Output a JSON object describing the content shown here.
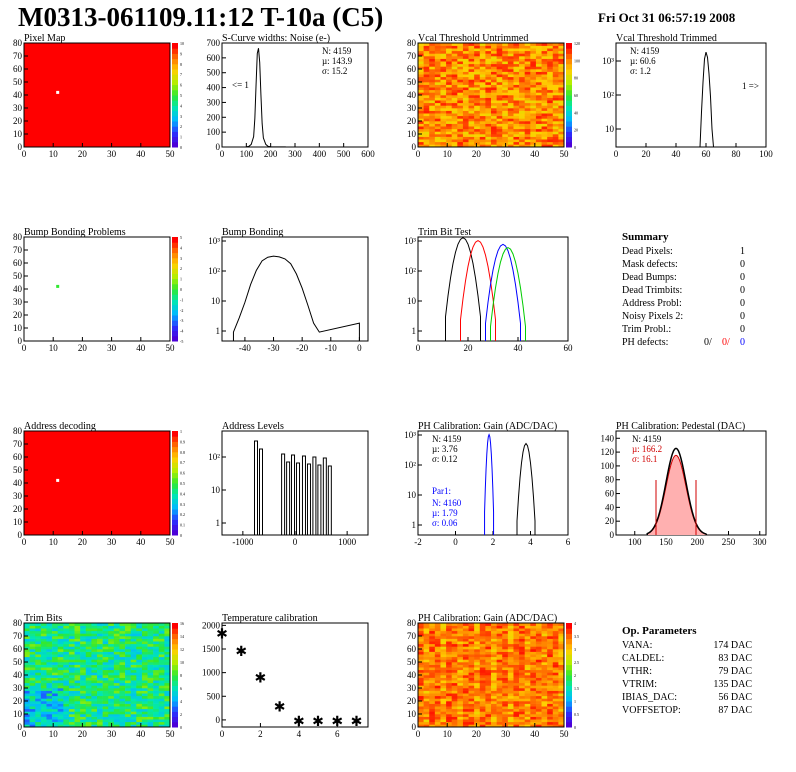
{
  "header": {
    "title": "M0313-061109.11:12 T-10a (C5)",
    "date": "Fri Oct 31 06:57:19 2008"
  },
  "chart_data": [
    {
      "id": "pixel-map",
      "type": "heatmap",
      "title": "Pixel Map",
      "x_ticks": [
        "0",
        "10",
        "20",
        "30",
        "40",
        "50"
      ],
      "y_ticks": [
        "0",
        "10",
        "20",
        "30",
        "40",
        "50",
        "60",
        "70",
        "80"
      ],
      "fill": "#ff0000",
      "marker": {
        "x": 12,
        "y": 42
      },
      "scale_ticks": [
        "0",
        "1",
        "2",
        "3",
        "4",
        "5",
        "6",
        "7",
        "8",
        "9",
        "10"
      ]
    },
    {
      "id": "s-curve-noise",
      "type": "histogram",
      "title": "S-Curve widths: Noise (e-)",
      "x_ticks": [
        "0",
        "100",
        "200",
        "300",
        "400",
        "500",
        "600"
      ],
      "y_ticks": [
        "0",
        "100",
        "200",
        "300",
        "400",
        "500",
        "600",
        "700"
      ],
      "stats": [
        "N: 4159",
        "µ: 143.9",
        "σ: 15.2"
      ],
      "annotation": "<= 1",
      "x": [
        100,
        110,
        120,
        130,
        135,
        140,
        145,
        150,
        155,
        160,
        165,
        170,
        180,
        190,
        200,
        260
      ],
      "y": [
        2,
        5,
        20,
        80,
        220,
        480,
        720,
        760,
        650,
        400,
        180,
        70,
        20,
        5,
        2,
        1
      ]
    },
    {
      "id": "vcal-untrimmed",
      "type": "heatmap",
      "title": "Vcal Threshold Untrimmed",
      "x_ticks": [
        "0",
        "10",
        "20",
        "30",
        "40",
        "50"
      ],
      "y_ticks": [
        "0",
        "10",
        "20",
        "30",
        "40",
        "50",
        "60",
        "70",
        "80"
      ],
      "scale_ticks": [
        "0",
        "20",
        "40",
        "60",
        "80",
        "100",
        "120"
      ]
    },
    {
      "id": "vcal-trimmed",
      "type": "histogram",
      "title": "Vcal Threshold Trimmed",
      "x_ticks": [
        "0",
        "20",
        "40",
        "60",
        "80",
        "100"
      ],
      "y_ticks": [
        "10",
        "10²",
        "10³"
      ],
      "stats": [
        "N: 4159",
        "µ: 60.6",
        "σ: 1.2"
      ],
      "annotation": "1 =>",
      "x": [
        56,
        57,
        58,
        59,
        60,
        61,
        62,
        63,
        64,
        65
      ],
      "y": [
        3,
        30,
        200,
        900,
        1400,
        1000,
        350,
        80,
        10,
        2
      ]
    },
    {
      "id": "bump-bonding-problems",
      "type": "heatmap",
      "title": "Bump Bonding Problems",
      "x_ticks": [
        "0",
        "10",
        "20",
        "30",
        "40",
        "50"
      ],
      "y_ticks": [
        "0",
        "10",
        "20",
        "30",
        "40",
        "50",
        "60",
        "70",
        "80"
      ],
      "marker": {
        "x": 12,
        "y": 42
      },
      "scale_ticks": [
        "-5",
        "-4",
        "-3",
        "-2",
        "-1",
        "0",
        "1",
        "2",
        "3",
        "4",
        "5"
      ]
    },
    {
      "id": "bump-bonding",
      "type": "histogram",
      "title": "Bump Bonding",
      "x_ticks": [
        "-40",
        "-30",
        "-20",
        "-10",
        "0"
      ],
      "y_ticks": [
        "1",
        "10",
        "10²",
        "10³"
      ],
      "x": [
        -44,
        -42,
        -40,
        -38,
        -36,
        -34,
        -32,
        -30,
        -28,
        -26,
        -24,
        -22,
        -20,
        -18,
        -16,
        -14,
        0
      ],
      "y": [
        1,
        3,
        10,
        40,
        120,
        250,
        330,
        360,
        340,
        290,
        200,
        90,
        30,
        8,
        2,
        1,
        2
      ]
    },
    {
      "id": "trim-bit-test",
      "type": "histogram",
      "title": "Trim Bit Test",
      "x_ticks": [
        "0",
        "20",
        "40",
        "60"
      ],
      "y_ticks": [
        "1",
        "10",
        "10²",
        "10³"
      ],
      "series": [
        {
          "color": "#000000",
          "center": 18,
          "peak": 1500
        },
        {
          "color": "#ff0000",
          "center": 24,
          "peak": 1200
        },
        {
          "color": "#0000ff",
          "center": 34,
          "peak": 900
        },
        {
          "color": "#00cc00",
          "center": 36,
          "peak": 700
        }
      ]
    },
    {
      "id": "summary",
      "type": "table",
      "title": "Summary",
      "rows": [
        {
          "label": "Dead Pixels:",
          "value": "1"
        },
        {
          "label": "Mask defects:",
          "value": "0"
        },
        {
          "label": "Dead Bumps:",
          "value": "0"
        },
        {
          "label": "Dead Trimbits:",
          "value": "0"
        },
        {
          "label": "Address Probl:",
          "value": "0"
        },
        {
          "label": "Noisy Pixels 2:",
          "value": "0"
        },
        {
          "label": "Trim Probl.:",
          "value": "0"
        }
      ],
      "ph_defects": {
        "label": "PH defects:",
        "values": [
          "0/",
          "0/",
          "0"
        ],
        "colors": [
          "#000000",
          "#ff0000",
          "#0000ff"
        ]
      }
    },
    {
      "id": "address-decoding",
      "type": "heatmap",
      "title": "Address decoding",
      "x_ticks": [
        "0",
        "10",
        "20",
        "30",
        "40",
        "50"
      ],
      "y_ticks": [
        "0",
        "10",
        "20",
        "30",
        "40",
        "50",
        "60",
        "70",
        "80"
      ],
      "fill": "#ff0000",
      "marker": {
        "x": 12,
        "y": 42
      },
      "scale_ticks": [
        "0",
        "0.1",
        "0.2",
        "0.3",
        "0.4",
        "0.5",
        "0.6",
        "0.7",
        "0.8",
        "0.9",
        "1"
      ]
    },
    {
      "id": "address-levels",
      "type": "histogram",
      "title": "Address Levels",
      "x_ticks": [
        "-1000",
        "0",
        "1000"
      ],
      "y_ticks": [
        "1",
        "10",
        "10²"
      ],
      "peaks": [
        -700,
        -180,
        10,
        220,
        420,
        620
      ]
    },
    {
      "id": "ph-gain",
      "type": "histogram",
      "title": "PH Calibration: Gain (ADC/DAC)",
      "x_ticks": [
        "-2",
        "0",
        "2",
        "4",
        "6"
      ],
      "y_ticks": [
        "1",
        "10",
        "10²",
        "10³"
      ],
      "stats": [
        "N: 4159",
        "µ: 3.76",
        "σ: 0.12"
      ],
      "par_label": "Par1:",
      "par_stats": [
        "N: 4160",
        "µ: 1.79",
        "σ: 0.06"
      ]
    },
    {
      "id": "ph-pedestal",
      "type": "histogram",
      "title": "PH Calibration: Pedestal (DAC)",
      "x_ticks": [
        "100",
        "150",
        "200",
        "250",
        "300"
      ],
      "y_ticks": [
        "0",
        "20",
        "40",
        "60",
        "80",
        "100",
        "120",
        "140"
      ],
      "stats": [
        "N: 4159",
        "µ: 166.2",
        "σ: 16.1"
      ]
    },
    {
      "id": "trim-bits",
      "type": "heatmap",
      "title": "Trim Bits",
      "x_ticks": [
        "0",
        "10",
        "20",
        "30",
        "40",
        "50"
      ],
      "y_ticks": [
        "0",
        "10",
        "20",
        "30",
        "40",
        "50",
        "60",
        "70",
        "80"
      ],
      "scale_ticks": [
        "0",
        "2",
        "4",
        "6",
        "8",
        "10",
        "12",
        "14",
        "16"
      ]
    },
    {
      "id": "temperature-calibration",
      "type": "scatter",
      "title": "Temperature calibration",
      "x_ticks": [
        "0",
        "2",
        "4",
        "6"
      ],
      "y_ticks": [
        "0",
        "500",
        "1000",
        "1500",
        "2000"
      ],
      "x": [
        0,
        1,
        2,
        3,
        4,
        5,
        6,
        7
      ],
      "y": [
        1850,
        1480,
        920,
        300,
        0,
        0,
        0,
        0
      ]
    },
    {
      "id": "ph-gain-map",
      "type": "heatmap",
      "title": "PH Calibration: Gain (ADC/DAC)",
      "x_ticks": [
        "0",
        "10",
        "20",
        "30",
        "40",
        "50"
      ],
      "y_ticks": [
        "0",
        "10",
        "20",
        "30",
        "40",
        "50",
        "60",
        "70",
        "80"
      ],
      "scale_ticks": [
        "0",
        "0.5",
        "1",
        "1.5",
        "2",
        "2.5",
        "3",
        "3.5",
        "4"
      ]
    },
    {
      "id": "op-parameters",
      "type": "table",
      "title": "Op. Parameters",
      "rows": [
        {
          "label": "VANA:",
          "value": "174 DAC"
        },
        {
          "label": "CALDEL:",
          "value": "83 DAC"
        },
        {
          "label": "VTHR:",
          "value": "79 DAC"
        },
        {
          "label": "VTRIM:",
          "value": "135 DAC"
        },
        {
          "label": "IBIAS_DAC:",
          "value": "56 DAC"
        },
        {
          "label": "VOFFSETOP:",
          "value": "87 DAC"
        }
      ]
    }
  ]
}
